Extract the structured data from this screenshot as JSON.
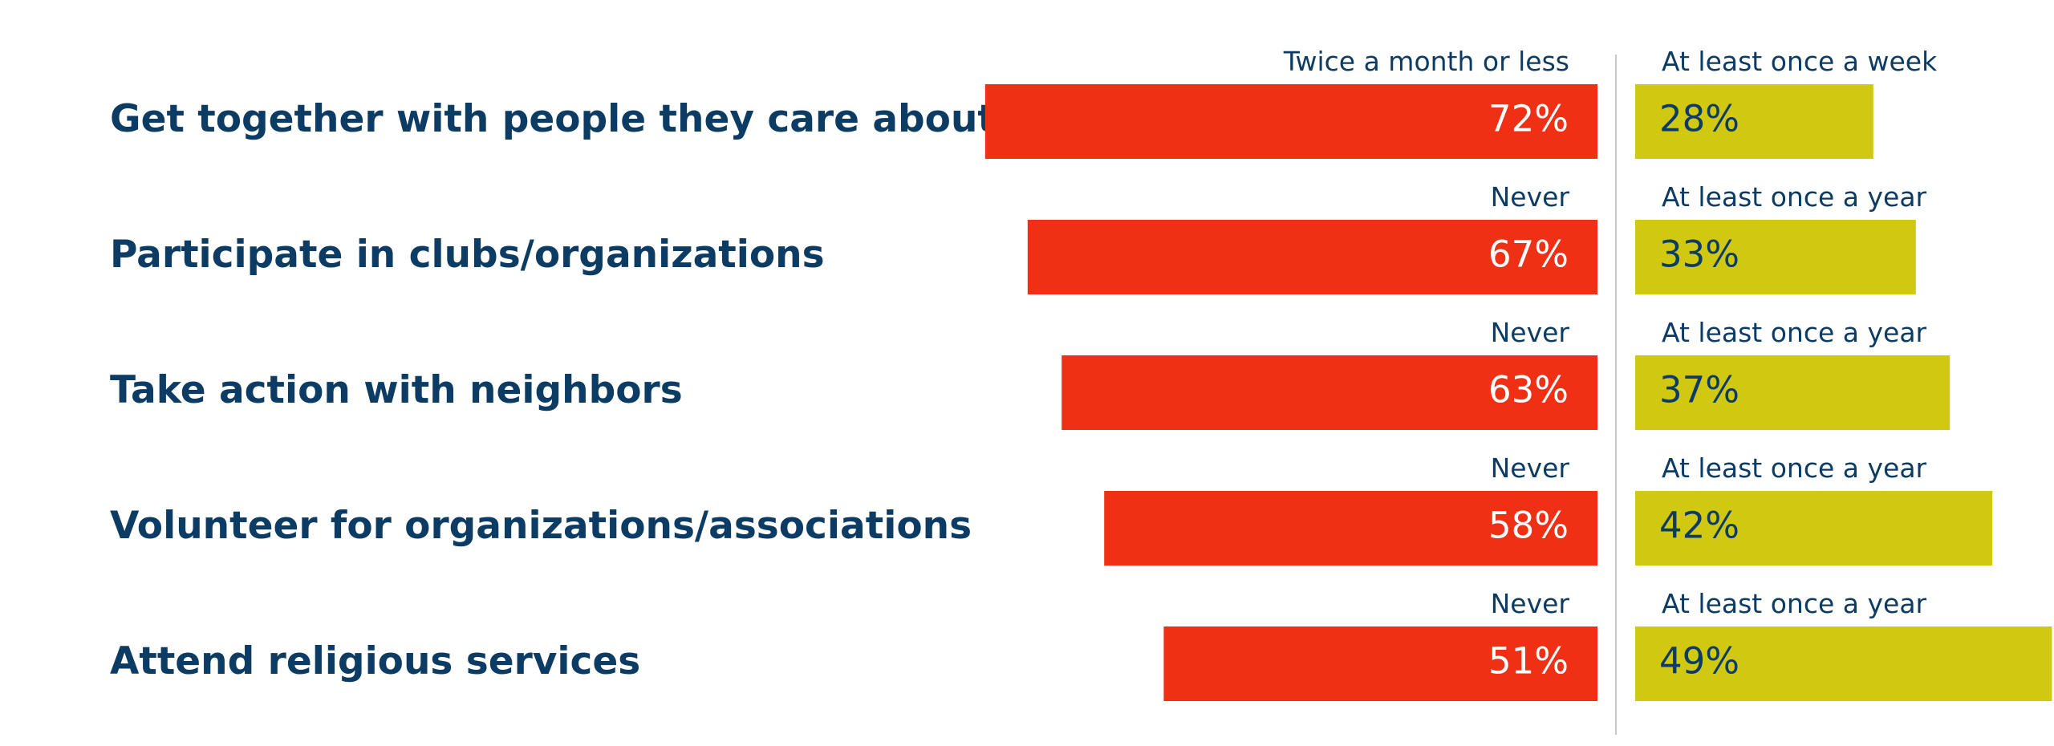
{
  "colors": {
    "text": "#0c3b64",
    "left_bar": "#ef3014",
    "right_bar": "#d1c812",
    "left_value_text": "#ffffff",
    "right_value_text": "#0c3b64",
    "divider": "#c9c9c9"
  },
  "chart_data": {
    "type": "bar",
    "orientation": "horizontal-diverging",
    "unit": "%",
    "categories": [
      "Get together with people they care about",
      "Participate in clubs/organizations",
      "Take action with neighbors",
      "Volunteer for organizations/associations",
      "Attend religious services"
    ],
    "series": [
      {
        "side": "left",
        "labels": [
          "Twice a month or less",
          "Never",
          "Never",
          "Never",
          "Never"
        ],
        "values": [
          72,
          67,
          63,
          58,
          51
        ],
        "value_labels": [
          "72%",
          "67%",
          "63%",
          "58%",
          "51%"
        ]
      },
      {
        "side": "right",
        "labels": [
          "At least once a week",
          "At least once a year",
          "At least once a year",
          "At least once a year",
          "At least once a year"
        ],
        "values": [
          28,
          33,
          37,
          42,
          49
        ],
        "value_labels": [
          "28%",
          "33%",
          "37%",
          "42%",
          "49%"
        ]
      }
    ],
    "grid": false,
    "legend": "none"
  }
}
